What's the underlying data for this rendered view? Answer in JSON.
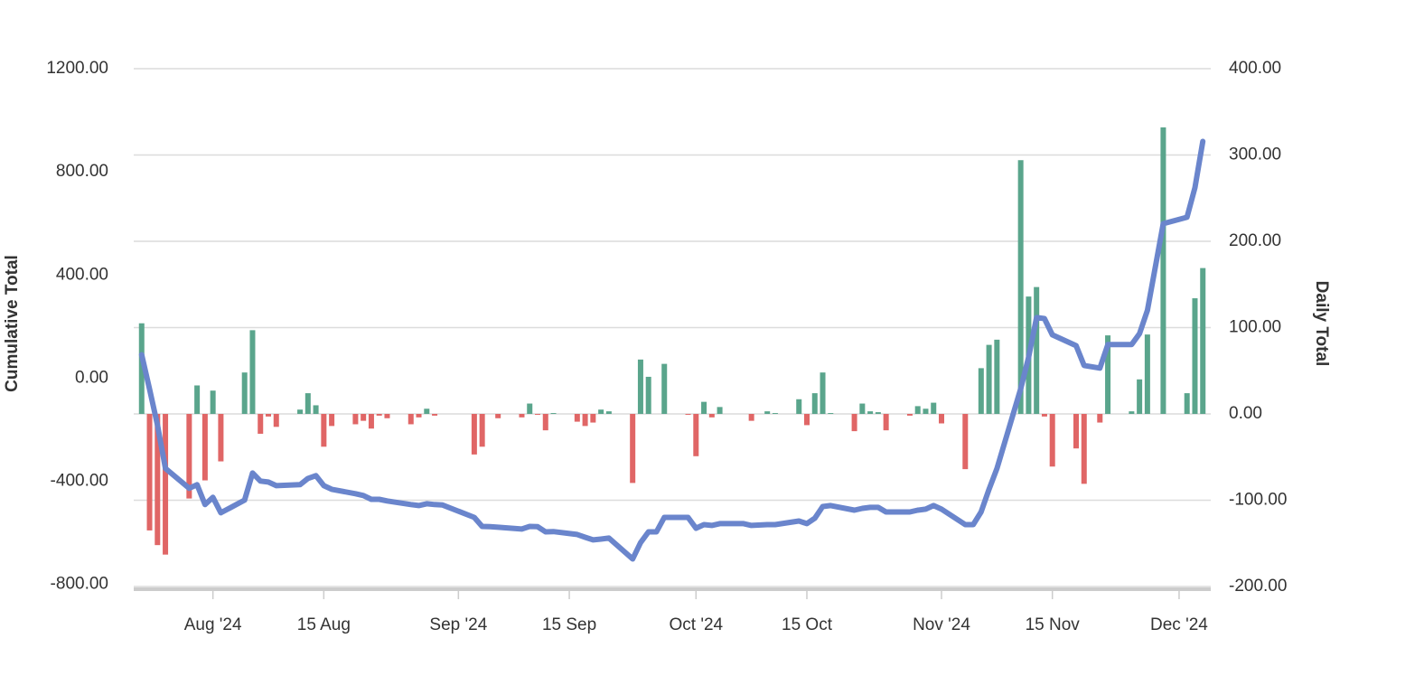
{
  "chart_data": {
    "type": "combo",
    "ylabel": "Cumulative Total",
    "y2label": "Daily Total",
    "xlim": [
      "2024-07-22",
      "2024-12-05"
    ],
    "xticks": [
      {
        "value": "2024-08-01",
        "label": "Aug '24"
      },
      {
        "value": "2024-08-15",
        "label": "15 Aug"
      },
      {
        "value": "2024-09-01",
        "label": "Sep '24"
      },
      {
        "value": "2024-09-15",
        "label": "15 Sep"
      },
      {
        "value": "2024-10-01",
        "label": "Oct '24"
      },
      {
        "value": "2024-10-15",
        "label": "15 Oct"
      },
      {
        "value": "2024-11-01",
        "label": "Nov '24"
      },
      {
        "value": "2024-11-15",
        "label": "15 Nov"
      },
      {
        "value": "2024-12-01",
        "label": "Dec '24"
      }
    ],
    "ylim": [
      -808,
      1200
    ],
    "yticks": [
      {
        "value": 1200,
        "label": "1200.00"
      },
      {
        "value": 800,
        "label": "800.00"
      },
      {
        "value": 400,
        "label": "400.00"
      },
      {
        "value": 0,
        "label": "0.00"
      },
      {
        "value": -400,
        "label": "-400.00"
      },
      {
        "value": -800,
        "label": "-800.00"
      }
    ],
    "y2lim": [
      -200,
      400
    ],
    "y2ticks": [
      {
        "value": 400,
        "label": "400.00"
      },
      {
        "value": 300,
        "label": "300.00"
      },
      {
        "value": 200,
        "label": "200.00"
      },
      {
        "value": 100,
        "label": "100.00"
      },
      {
        "value": 0,
        "label": "0.00"
      },
      {
        "value": -100,
        "label": "-100.00"
      },
      {
        "value": -200,
        "label": "-200.00"
      }
    ],
    "grid": true,
    "x": [
      "2024-07-23",
      "2024-07-24",
      "2024-07-25",
      "2024-07-26",
      "2024-07-29",
      "2024-07-30",
      "2024-07-31",
      "2024-08-01",
      "2024-08-02",
      "2024-08-05",
      "2024-08-06",
      "2024-08-07",
      "2024-08-08",
      "2024-08-09",
      "2024-08-12",
      "2024-08-13",
      "2024-08-14",
      "2024-08-15",
      "2024-08-16",
      "2024-08-19",
      "2024-08-20",
      "2024-08-21",
      "2024-08-22",
      "2024-08-23",
      "2024-08-26",
      "2024-08-27",
      "2024-08-28",
      "2024-08-29",
      "2024-08-30",
      "2024-09-03",
      "2024-09-04",
      "2024-09-05",
      "2024-09-06",
      "2024-09-09",
      "2024-09-10",
      "2024-09-11",
      "2024-09-12",
      "2024-09-13",
      "2024-09-16",
      "2024-09-17",
      "2024-09-18",
      "2024-09-19",
      "2024-09-20",
      "2024-09-23",
      "2024-09-24",
      "2024-09-25",
      "2024-09-26",
      "2024-09-27",
      "2024-09-30",
      "2024-10-01",
      "2024-10-02",
      "2024-10-03",
      "2024-10-04",
      "2024-10-07",
      "2024-10-08",
      "2024-10-10",
      "2024-10-11",
      "2024-10-14",
      "2024-10-15",
      "2024-10-16",
      "2024-10-17",
      "2024-10-18",
      "2024-10-21",
      "2024-10-22",
      "2024-10-23",
      "2024-10-24",
      "2024-10-25",
      "2024-10-28",
      "2024-10-29",
      "2024-10-30",
      "2024-10-31",
      "2024-11-01",
      "2024-11-04",
      "2024-11-05",
      "2024-11-06",
      "2024-11-07",
      "2024-11-08",
      "2024-11-11",
      "2024-11-12",
      "2024-11-13",
      "2024-11-14",
      "2024-11-15",
      "2024-11-18",
      "2024-11-19",
      "2024-11-21",
      "2024-11-22",
      "2024-11-25",
      "2024-11-26",
      "2024-11-27",
      "2024-11-29",
      "2024-12-02",
      "2024-12-03",
      "2024-12-04"
    ],
    "series": [
      {
        "type": "bar",
        "axis": "y2",
        "color": "#5aa58c",
        "negative_color": "#e06666",
        "values": [
          105,
          -135,
          -152,
          -163,
          -98,
          33,
          -77,
          27,
          -55,
          48,
          97,
          -23,
          -3,
          -15,
          5,
          24,
          10,
          -38,
          -14,
          -12,
          -8,
          -17,
          -2,
          -5,
          -12,
          -4,
          6,
          -2,
          null,
          -47,
          -38,
          null,
          -5,
          -4,
          12,
          -1,
          -19,
          1,
          -9,
          -14,
          -10,
          5,
          3,
          -80,
          63,
          43,
          null,
          58,
          -1,
          -49,
          14,
          -4,
          8,
          null,
          -8,
          3,
          1,
          17,
          -13,
          24,
          48,
          1,
          -20,
          12,
          3,
          2,
          -19,
          -2,
          9,
          6,
          13,
          -11,
          -64,
          null,
          53,
          80,
          86,
          294,
          136,
          147,
          -3,
          -61,
          -40,
          -81,
          -10,
          91,
          3,
          40,
          92,
          332,
          24,
          134,
          169
        ]
      },
      {
        "type": "line",
        "axis": "y",
        "color": "#6a85cc",
        "values": [
          91,
          -42,
          -182,
          -350,
          -427,
          -413,
          -490,
          -462,
          -522,
          -473,
          -368,
          -399,
          -403,
          -417,
          -413,
          -389,
          -378,
          -417,
          -431,
          -448,
          -455,
          -470,
          -470,
          -476,
          -490,
          -494,
          -487,
          -490,
          -492,
          -540,
          -575,
          -576,
          -578,
          -585,
          -575,
          -576,
          -596,
          -595,
          -606,
          -617,
          -627,
          -624,
          -620,
          -701,
          -638,
          -596,
          -596,
          -540,
          -540,
          -582,
          -568,
          -571,
          -564,
          -564,
          -571,
          -568,
          -568,
          -554,
          -564,
          -543,
          -498,
          -494,
          -512,
          -505,
          -501,
          -501,
          -519,
          -519,
          -512,
          -508,
          -494,
          -508,
          -568,
          -568,
          -519,
          -431,
          -350,
          -42,
          81,
          235,
          231,
          168,
          126,
          49,
          39,
          130,
          130,
          172,
          263,
          599,
          624,
          739,
          918
        ]
      }
    ]
  }
}
